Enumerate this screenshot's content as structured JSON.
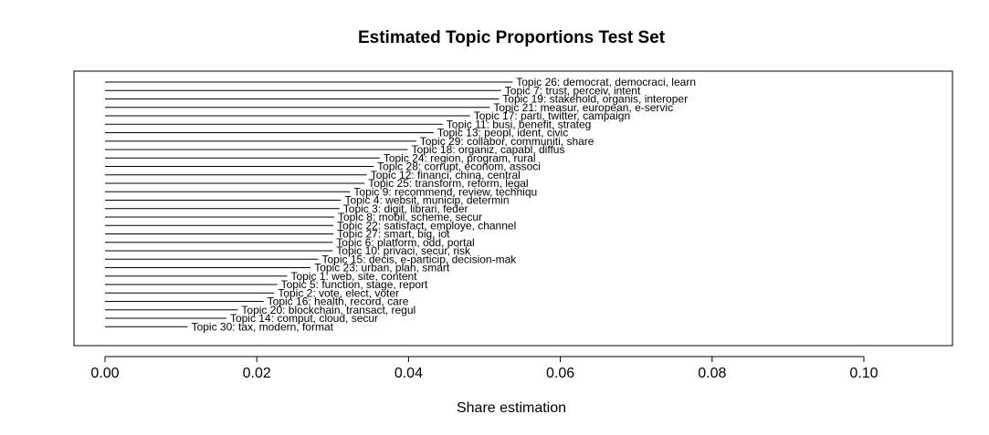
{
  "chart_data": {
    "type": "bar",
    "orientation": "horizontal",
    "title": "Estimated Topic Proportions Test Set",
    "xlabel": "Share estimation",
    "ylabel": "",
    "xlim": [
      0,
      0.112
    ],
    "xticks": [
      0.0,
      0.02,
      0.04,
      0.06,
      0.08,
      0.1
    ],
    "xtick_labels": [
      "0.00",
      "0.02",
      "0.04",
      "0.06",
      "0.08",
      "0.10"
    ],
    "grid": false,
    "legend": "none",
    "categories": [
      "Topic 26: democrat, democraci, learn",
      "Topic 7: trust, perceiv, intent",
      "Topic 19: stakehold, organis, interoper",
      "Topic 21: measur, european, e-servic",
      "Topic 17: parti, twitter, campaign",
      "Topic 11: busi, benefit, strateg",
      "Topic 13: peopl, ident, civic",
      "Topic 29: collabor, communiti, share",
      "Topic 18: organiz, capabl, diffus",
      "Topic 24: region, program, rural",
      "Topic 28: corrupt, econom, associ",
      "Topic 12: financi, china, central",
      "Topic 25: transform, reform, legal",
      "Topic 9: recommend, review, techniqu",
      "Topic 4: websit, municip, determin",
      "Topic 3: digit, librari, feder",
      "Topic 8: mobil, scheme, secur",
      "Topic 22: satisfact, employe, channel",
      "Topic 27: smart, big, iot",
      "Topic 6: platform, odd, portal",
      "Topic 10: privaci, secur, risk",
      "Topic 15: decis, e-particip, decision-mak",
      "Topic 23: urban, plan, smart",
      "Topic 1: web, site, content",
      "Topic 5: function, stage, report",
      "Topic 2: vote, elect, voter",
      "Topic 16: health, record, care",
      "Topic 20: blockchain, transact, regul",
      "Topic 14: comput, cloud, secur",
      "Topic 30: tax, modern, format"
    ],
    "values": [
      0.0537,
      0.0522,
      0.0519,
      0.0507,
      0.0481,
      0.0445,
      0.0433,
      0.041,
      0.0399,
      0.0362,
      0.0354,
      0.0345,
      0.0342,
      0.0323,
      0.0311,
      0.0309,
      0.0302,
      0.0301,
      0.0301,
      0.03,
      0.03,
      0.0281,
      0.0271,
      0.024,
      0.0227,
      0.0223,
      0.0209,
      0.0175,
      0.016,
      0.0109
    ],
    "colors": {
      "bar": "#000000",
      "frame": "#000000",
      "background": "#ffffff"
    }
  }
}
